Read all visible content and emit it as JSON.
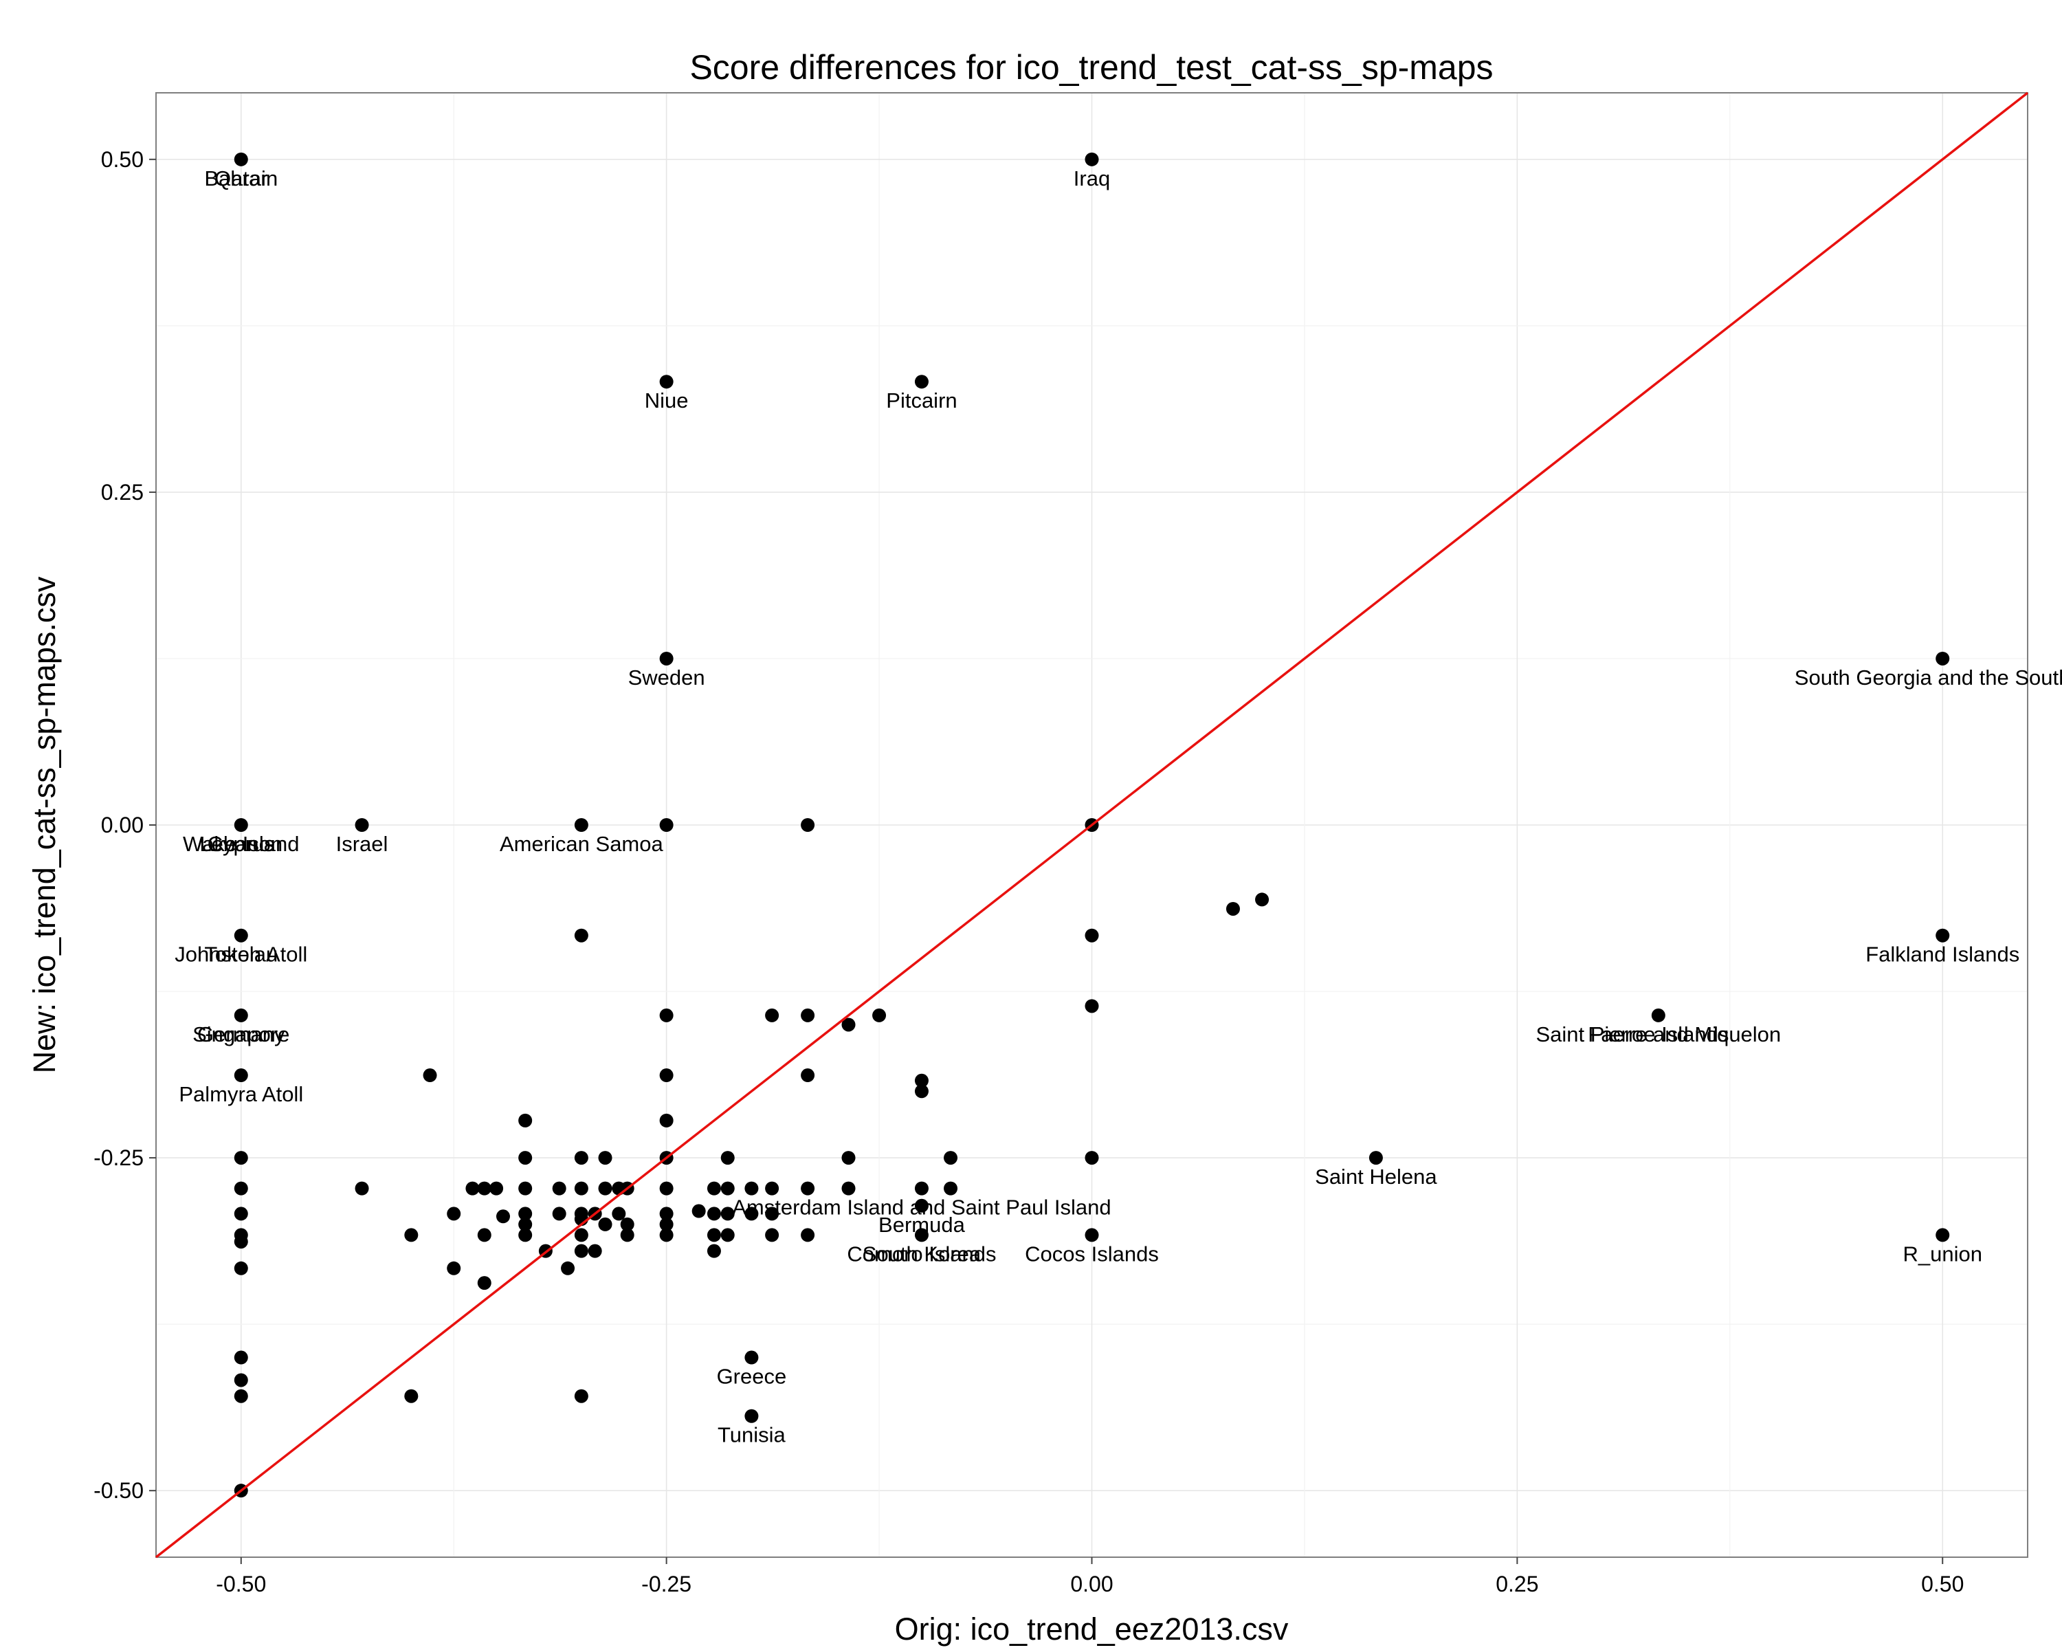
{
  "chart_data": {
    "type": "scatter",
    "title": "Score differences for ico_trend_test_cat-ss_sp-maps",
    "xlabel": "Orig: ico_trend_eez2013.csv",
    "ylabel": "New: ico_trend_cat-ss_sp-maps.csv",
    "xlim": [
      -0.55,
      0.55
    ],
    "ylim": [
      -0.55,
      0.55
    ],
    "xticks": [
      -0.5,
      -0.25,
      0,
      0.25,
      0.5
    ],
    "yticks": [
      -0.5,
      -0.25,
      0,
      0.25,
      0.5
    ],
    "xtick_labels": [
      "-0.50",
      "-0.25",
      "0.00",
      "0.25",
      "0.50"
    ],
    "ytick_labels": [
      "-0.50",
      "-0.25",
      "0.00",
      "0.25",
      "0.50"
    ],
    "grid": true,
    "reference_line": {
      "type": "identity",
      "color": "#e8110f"
    },
    "point_color": "#000000",
    "labeled_points": [
      {
        "x": -0.5,
        "y": 0.5,
        "label": "Bahrain"
      },
      {
        "x": -0.5,
        "y": 0.5,
        "label": "Qatar"
      },
      {
        "x": 0.0,
        "y": 0.5,
        "label": "Iraq"
      },
      {
        "x": -0.25,
        "y": 0.333,
        "label": "Niue"
      },
      {
        "x": -0.1,
        "y": 0.333,
        "label": "Pitcairn"
      },
      {
        "x": -0.25,
        "y": 0.125,
        "label": "Sweden"
      },
      {
        "x": 0.5,
        "y": 0.125,
        "label": "South Georgia and the South S"
      },
      {
        "x": -0.5,
        "y": 0.0,
        "label": "Wake Island"
      },
      {
        "x": -0.5,
        "y": 0.0,
        "label": "Lebanon"
      },
      {
        "x": -0.5,
        "y": 0.0,
        "label": "Cyprus"
      },
      {
        "x": -0.429,
        "y": 0.0,
        "label": "Israel"
      },
      {
        "x": -0.3,
        "y": 0.0,
        "label": "American Samoa"
      },
      {
        "x": -0.5,
        "y": -0.083,
        "label": "Johnston Atoll"
      },
      {
        "x": -0.5,
        "y": -0.083,
        "label": "Tokelau"
      },
      {
        "x": 0.5,
        "y": -0.083,
        "label": "Falkland Islands"
      },
      {
        "x": -0.5,
        "y": -0.143,
        "label": "Singapore"
      },
      {
        "x": -0.5,
        "y": -0.143,
        "label": "Germany"
      },
      {
        "x": 0.333,
        "y": -0.143,
        "label": "Saint Pierre and Miquelon"
      },
      {
        "x": 0.333,
        "y": -0.143,
        "label": "Faeroe Islands"
      },
      {
        "x": -0.5,
        "y": -0.188,
        "label": "Palmyra Atoll"
      },
      {
        "x": -0.1,
        "y": -0.273,
        "label": "Amsterdam Island and Saint Paul Island"
      },
      {
        "x": 0.167,
        "y": -0.25,
        "label": "Saint Helena"
      },
      {
        "x": -0.1,
        "y": -0.286,
        "label": "Bermuda"
      },
      {
        "x": -0.1,
        "y": -0.308,
        "label": "South Korea"
      },
      {
        "x": -0.1,
        "y": -0.308,
        "label": "Comoro Islands"
      },
      {
        "x": 0.0,
        "y": -0.308,
        "label": "Cocos Islands"
      },
      {
        "x": 0.5,
        "y": -0.308,
        "label": "R_union"
      },
      {
        "x": -0.2,
        "y": -0.4,
        "label": "Greece"
      },
      {
        "x": -0.2,
        "y": -0.444,
        "label": "Tunisia"
      }
    ],
    "points": [
      [
        -0.5,
        0.5
      ],
      [
        0.0,
        0.5
      ],
      [
        -0.25,
        0.333
      ],
      [
        -0.1,
        0.333
      ],
      [
        -0.25,
        0.125
      ],
      [
        0.5,
        0.125
      ],
      [
        -0.5,
        0.0
      ],
      [
        -0.429,
        0.0
      ],
      [
        -0.3,
        0.0
      ],
      [
        -0.25,
        0.0
      ],
      [
        -0.167,
        0.0
      ],
      [
        0.0,
        0.0
      ],
      [
        -0.5,
        -0.083
      ],
      [
        -0.3,
        -0.083
      ],
      [
        0.0,
        -0.083
      ],
      [
        0.5,
        -0.083
      ],
      [
        0.083,
        -0.063
      ],
      [
        0.1,
        -0.056
      ],
      [
        -0.5,
        -0.143
      ],
      [
        -0.25,
        -0.143
      ],
      [
        -0.188,
        -0.143
      ],
      [
        -0.167,
        -0.143
      ],
      [
        -0.125,
        -0.143
      ],
      [
        -0.143,
        -0.15
      ],
      [
        0.0,
        -0.136
      ],
      [
        0.333,
        -0.143
      ],
      [
        -0.5,
        -0.188
      ],
      [
        -0.389,
        -0.188
      ],
      [
        -0.25,
        -0.188
      ],
      [
        -0.167,
        -0.188
      ],
      [
        -0.1,
        -0.192
      ],
      [
        -0.1,
        -0.2
      ],
      [
        -0.333,
        -0.222
      ],
      [
        -0.25,
        -0.222
      ],
      [
        -0.5,
        -0.25
      ],
      [
        -0.333,
        -0.25
      ],
      [
        -0.3,
        -0.25
      ],
      [
        -0.286,
        -0.25
      ],
      [
        -0.25,
        -0.25
      ],
      [
        -0.214,
        -0.25
      ],
      [
        -0.143,
        -0.25
      ],
      [
        -0.083,
        -0.25
      ],
      [
        0.0,
        -0.25
      ],
      [
        0.167,
        -0.25
      ],
      [
        -0.5,
        -0.273
      ],
      [
        -0.429,
        -0.273
      ],
      [
        -0.364,
        -0.273
      ],
      [
        -0.357,
        -0.273
      ],
      [
        -0.35,
        -0.273
      ],
      [
        -0.333,
        -0.273
      ],
      [
        -0.313,
        -0.273
      ],
      [
        -0.3,
        -0.273
      ],
      [
        -0.286,
        -0.273
      ],
      [
        -0.278,
        -0.273
      ],
      [
        -0.273,
        -0.273
      ],
      [
        -0.25,
        -0.273
      ],
      [
        -0.222,
        -0.273
      ],
      [
        -0.214,
        -0.273
      ],
      [
        -0.2,
        -0.273
      ],
      [
        -0.188,
        -0.273
      ],
      [
        -0.167,
        -0.273
      ],
      [
        -0.143,
        -0.273
      ],
      [
        -0.1,
        -0.273
      ],
      [
        -0.083,
        -0.273
      ],
      [
        -0.5,
        -0.292
      ],
      [
        -0.375,
        -0.292
      ],
      [
        -0.346,
        -0.294
      ],
      [
        -0.333,
        -0.292
      ],
      [
        -0.313,
        -0.292
      ],
      [
        -0.3,
        -0.292
      ],
      [
        -0.292,
        -0.292
      ],
      [
        -0.278,
        -0.292
      ],
      [
        -0.25,
        -0.292
      ],
      [
        -0.231,
        -0.29
      ],
      [
        -0.222,
        -0.292
      ],
      [
        -0.214,
        -0.292
      ],
      [
        -0.2,
        -0.292
      ],
      [
        -0.188,
        -0.292
      ],
      [
        -0.1,
        -0.286
      ],
      [
        -0.5,
        -0.308
      ],
      [
        -0.5,
        -0.313
      ],
      [
        -0.4,
        -0.308
      ],
      [
        -0.357,
        -0.308
      ],
      [
        -0.333,
        -0.308
      ],
      [
        -0.333,
        -0.3
      ],
      [
        -0.3,
        -0.308
      ],
      [
        -0.3,
        -0.296
      ],
      [
        -0.286,
        -0.3
      ],
      [
        -0.273,
        -0.308
      ],
      [
        -0.273,
        -0.3
      ],
      [
        -0.25,
        -0.308
      ],
      [
        -0.25,
        -0.3
      ],
      [
        -0.222,
        -0.308
      ],
      [
        -0.214,
        -0.308
      ],
      [
        -0.188,
        -0.308
      ],
      [
        -0.167,
        -0.308
      ],
      [
        -0.1,
        -0.308
      ],
      [
        0.0,
        -0.308
      ],
      [
        0.5,
        -0.308
      ],
      [
        -0.321,
        -0.32
      ],
      [
        -0.3,
        -0.32
      ],
      [
        -0.292,
        -0.32
      ],
      [
        -0.222,
        -0.32
      ],
      [
        -0.5,
        -0.333
      ],
      [
        -0.375,
        -0.333
      ],
      [
        -0.308,
        -0.333
      ],
      [
        -0.357,
        -0.344
      ],
      [
        -0.2,
        -0.4
      ],
      [
        -0.5,
        -0.4
      ],
      [
        -0.5,
        -0.417
      ],
      [
        -0.5,
        -0.429
      ],
      [
        -0.4,
        -0.429
      ],
      [
        -0.3,
        -0.429
      ],
      [
        -0.2,
        -0.444
      ],
      [
        -0.5,
        -0.5
      ]
    ]
  }
}
